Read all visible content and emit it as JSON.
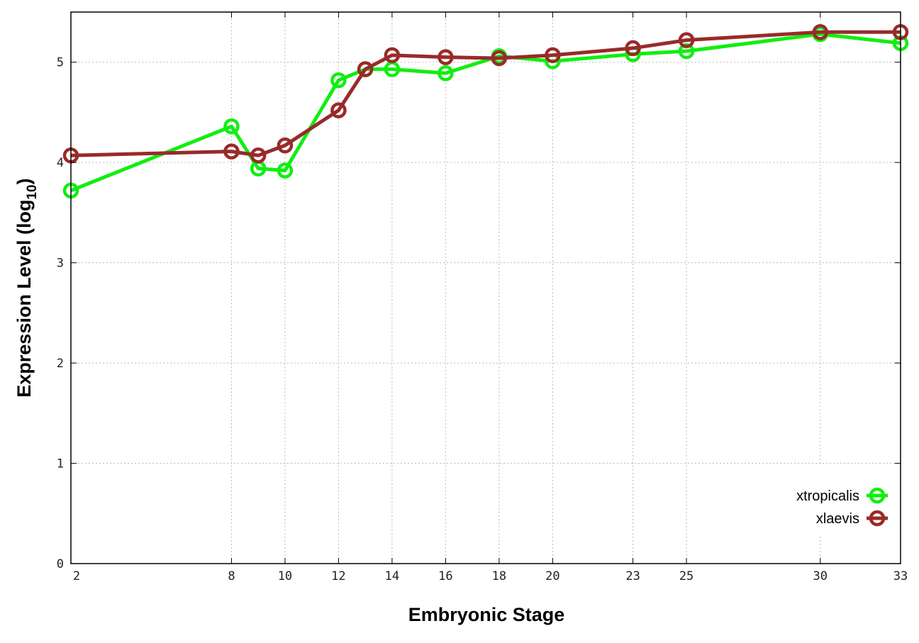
{
  "chart_data": {
    "type": "line",
    "title": "",
    "xlabel": "Embryonic Stage",
    "ylabel": "Expression Level (log",
    "ylabel_sub": "10",
    "ylabel_end": ")",
    "xlim": [
      2,
      33
    ],
    "ylim": [
      0,
      5.5
    ],
    "x_ticks": [
      2,
      8,
      10,
      12,
      14,
      16,
      18,
      20,
      23,
      25,
      30,
      33
    ],
    "y_ticks": [
      0,
      1,
      2,
      3,
      4,
      5
    ],
    "grid": true,
    "legend_position": "bottom-right",
    "x": [
      2,
      8,
      9,
      10,
      12,
      13,
      14,
      16,
      18,
      20,
      23,
      25,
      30,
      33
    ],
    "series": [
      {
        "name": "xtropicalis",
        "color": "#11ee11",
        "values": [
          3.72,
          4.36,
          3.94,
          3.92,
          4.82,
          4.93,
          4.93,
          4.89,
          5.06,
          5.01,
          5.08,
          5.11,
          5.28,
          5.19
        ]
      },
      {
        "name": "xlaevis",
        "color": "#992a2a",
        "values": [
          4.07,
          4.11,
          4.07,
          4.17,
          4.52,
          4.93,
          5.07,
          5.05,
          5.04,
          5.07,
          5.14,
          5.22,
          5.3,
          5.3
        ]
      }
    ]
  }
}
